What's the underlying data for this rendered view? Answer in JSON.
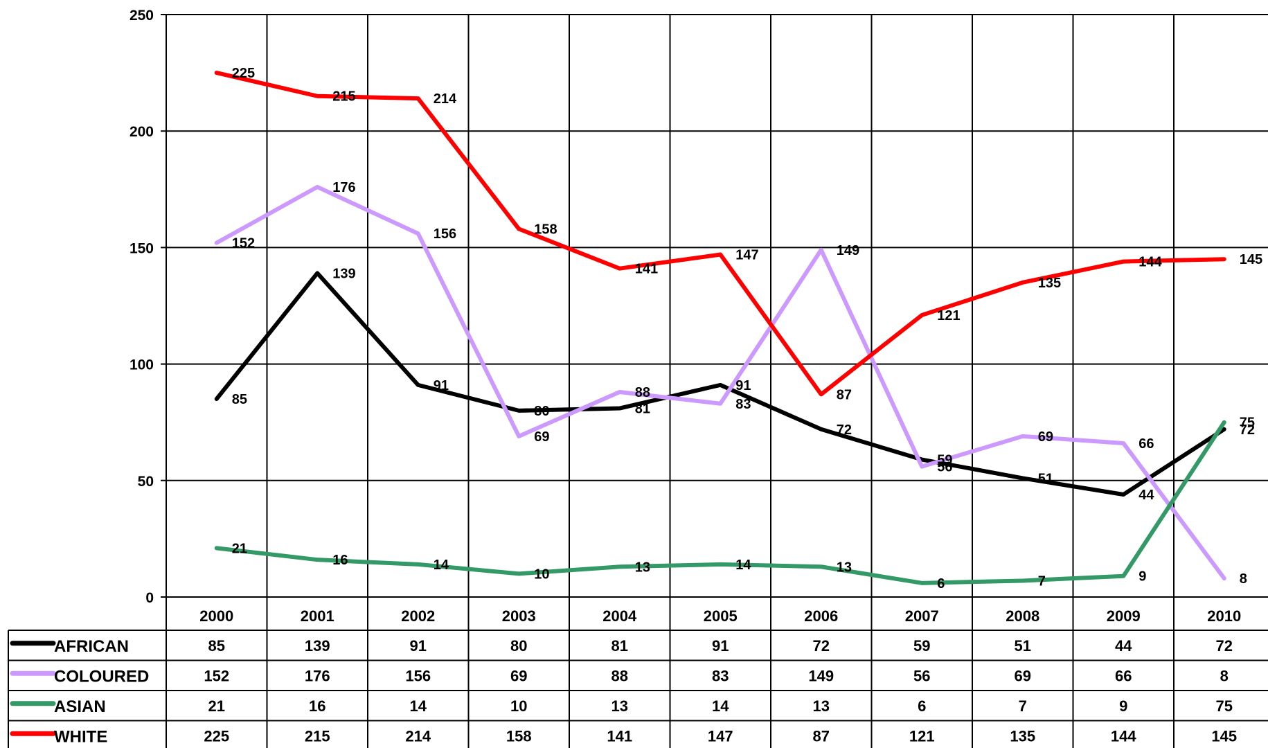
{
  "chart_data": {
    "type": "line",
    "title": "",
    "xlabel": "",
    "ylabel": "",
    "categories": [
      "2000",
      "2001",
      "2002",
      "2003",
      "2004",
      "2005",
      "2006",
      "2007",
      "2008",
      "2009",
      "2010"
    ],
    "ylim": [
      0,
      250
    ],
    "yticks": [
      0,
      50,
      100,
      150,
      200,
      250
    ],
    "grid": true,
    "legend": "data-table-below",
    "series": [
      {
        "name": "AFRICAN",
        "color": "#000000",
        "values": [
          85,
          139,
          91,
          80,
          81,
          91,
          72,
          59,
          51,
          44,
          72
        ]
      },
      {
        "name": "COLOURED",
        "color": "#cc99ff",
        "values": [
          152,
          176,
          156,
          69,
          88,
          83,
          149,
          56,
          69,
          66,
          8
        ]
      },
      {
        "name": "ASIAN",
        "color": "#339966",
        "values": [
          21,
          16,
          14,
          10,
          13,
          14,
          13,
          6,
          7,
          9,
          75
        ]
      },
      {
        "name": "WHITE",
        "color": "#ff0000",
        "values": [
          225,
          215,
          214,
          158,
          141,
          147,
          87,
          121,
          135,
          144,
          145
        ]
      }
    ]
  }
}
